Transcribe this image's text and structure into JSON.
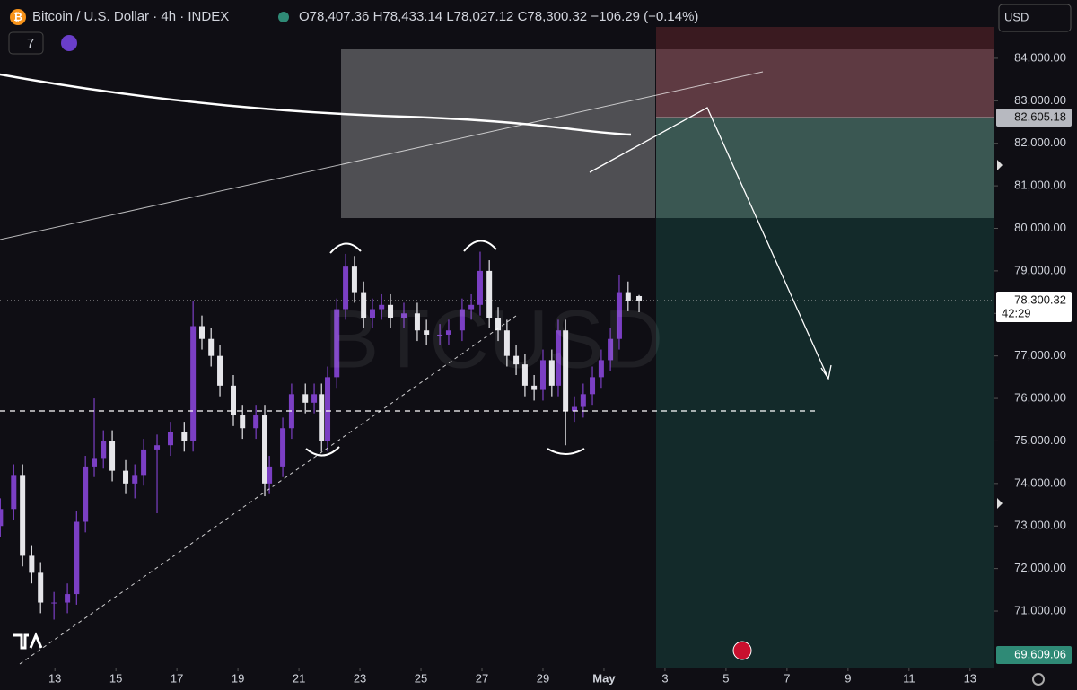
{
  "header": {
    "title": "Bitcoin / U.S. Dollar · 4h · INDEX",
    "ohlc": [
      "O78,407.36",
      "H78,433.14",
      "L78,027.12",
      "C78,300.32"
    ],
    "change": "−106.29 (−0.14%)",
    "indicators": "7",
    "currency": "USD",
    "countdown": "42:29",
    "watermark": "BTCUSD"
  },
  "chart_data": {
    "type": "candlestick",
    "x": [
      11.21,
      11.65,
      11.94,
      12.24,
      12.53,
      12.97,
      13.41,
      13.71,
      14.0,
      14.29,
      14.59,
      14.88,
      15.32,
      15.62,
      15.91,
      16.35,
      16.79,
      17.24,
      17.53,
      17.82,
      18.12,
      18.41,
      18.85,
      19.15,
      19.59,
      19.88,
      20.03,
      20.47,
      20.76,
      21.21,
      21.5,
      21.74,
      21.94,
      22.24,
      22.53,
      22.82,
      23.12,
      23.41,
      23.71,
      24.0,
      24.44,
      24.88,
      25.18,
      25.62,
      25.91,
      26.35,
      26.65,
      26.94,
      27.24,
      27.53,
      27.82,
      28.12,
      28.41,
      28.71,
      29.0,
      29.29,
      29.5,
      29.74,
      30.03,
      30.32,
      30.62,
      30.91,
      31.21,
      31.5,
      31.79,
      32.15
    ],
    "open": [
      73000,
      73400,
      74200,
      72300,
      71900,
      71200,
      71200,
      71400,
      73100,
      74400,
      74600,
      75000,
      74300,
      74000,
      74200,
      74800,
      74900,
      75200,
      75000,
      77700,
      77400,
      77000,
      76300,
      75600,
      75300,
      75600,
      74000,
      74400,
      75300,
      76100,
      75900,
      76100,
      75000,
      76500,
      78100,
      79100,
      78500,
      77900,
      78100,
      78200,
      77900,
      78000,
      77600,
      77500,
      77500,
      77600,
      78100,
      78200,
      79000,
      77900,
      77600,
      77000,
      76800,
      76300,
      76200,
      76900,
      76300,
      77600,
      75700,
      75800,
      76100,
      76500,
      76900,
      77400,
      78500,
      78407.36
    ],
    "high": [
      73650,
      74450,
      74450,
      72550,
      72150,
      71450,
      71650,
      73350,
      74650,
      76000,
      75250,
      75250,
      74550,
      74450,
      75050,
      75150,
      75450,
      75450,
      78300,
      77950,
      77650,
      77250,
      76550,
      75850,
      75850,
      75850,
      74650,
      75550,
      76350,
      76350,
      76350,
      76350,
      76750,
      78350,
      79400,
      79350,
      78750,
      78350,
      78450,
      78450,
      78250,
      78250,
      77850,
      77750,
      77850,
      78350,
      78450,
      79450,
      79250,
      78150,
      77850,
      77250,
      77050,
      76550,
      77150,
      77150,
      77850,
      77850,
      76050,
      76350,
      76750,
      77150,
      77650,
      78900,
      78750,
      78433.14
    ],
    "low": [
      72750,
      73150,
      72050,
      71650,
      70950,
      70800,
      70950,
      71150,
      72850,
      74150,
      74350,
      74050,
      73750,
      73650,
      73950,
      73300,
      74650,
      74750,
      74750,
      77150,
      76750,
      76050,
      75350,
      75050,
      75050,
      73700,
      73750,
      74150,
      75050,
      75650,
      75650,
      74750,
      74750,
      76250,
      77850,
      78250,
      77650,
      77650,
      77850,
      77650,
      77650,
      77350,
      77250,
      77250,
      77250,
      77350,
      77850,
      77950,
      77650,
      77350,
      76750,
      76550,
      76050,
      75950,
      75950,
      76050,
      76050,
      74900,
      75450,
      75550,
      75850,
      76250,
      76650,
      77150,
      78050,
      78027.12
    ],
    "close": [
      73400,
      74200,
      72300,
      71900,
      71200,
      71200,
      71400,
      73100,
      74400,
      74600,
      75000,
      74300,
      74000,
      74200,
      74800,
      74900,
      75200,
      75000,
      77700,
      77400,
      77000,
      76300,
      75600,
      75300,
      75600,
      74000,
      74400,
      75300,
      76100,
      75900,
      76100,
      75000,
      76500,
      78100,
      79100,
      78500,
      77900,
      78100,
      78200,
      77900,
      78000,
      77600,
      77500,
      77500,
      77600,
      78100,
      78200,
      79000,
      77900,
      77600,
      77000,
      76800,
      76300,
      76200,
      76900,
      76300,
      77600,
      75700,
      75800,
      76100,
      76500,
      76900,
      77400,
      78500,
      78300,
      78300.32
    ],
    "up_color": "#7b3fc4",
    "down_color": "#e6e6ea",
    "xlim": [
      11.2,
      43.8
    ],
    "xticks": [
      13,
      15,
      17,
      19,
      21,
      23,
      25,
      27,
      29,
      {
        "value": 31,
        "label": "May"
      },
      {
        "value": 33,
        "label": "3"
      },
      {
        "value": 35,
        "label": "5"
      },
      {
        "value": 37,
        "label": "7"
      },
      {
        "value": 39,
        "label": "9"
      },
      {
        "value": 41,
        "label": "11"
      },
      {
        "value": 43,
        "label": "13"
      }
    ],
    "ylim": [
      69650,
      85370
    ],
    "yticks": [
      {
        "value": 71000,
        "label": "71,000.00"
      },
      {
        "value": 72000,
        "label": "72,000.00"
      },
      {
        "value": 73000,
        "label": "73,000.00"
      },
      {
        "value": 74000,
        "label": "74,000.00"
      },
      {
        "value": 75000,
        "label": "75,000.00"
      },
      {
        "value": 76000,
        "label": "76,000.00"
      },
      {
        "value": 77000,
        "label": "77,000.00"
      },
      {
        "value": 78000,
        "label": "78,000.00"
      },
      {
        "value": 79000,
        "label": "79,000.00"
      },
      {
        "value": 80000,
        "label": "80,000.00"
      },
      {
        "value": 81000,
        "label": "81,000.00"
      },
      {
        "value": 82000,
        "label": "82,000.00"
      },
      {
        "value": 83000,
        "label": "83,000.00"
      },
      {
        "value": 84000,
        "label": "84,000.00"
      }
    ],
    "price_labels": [
      {
        "value": 82605.18,
        "label": "82,605.18",
        "color": "#b7b9c0"
      },
      {
        "value": 78300.32,
        "label": "78,300.32",
        "color": "#ffffff"
      },
      {
        "value": 69609.06,
        "label": "69,609.06",
        "color": "#2f8a76"
      }
    ]
  }
}
